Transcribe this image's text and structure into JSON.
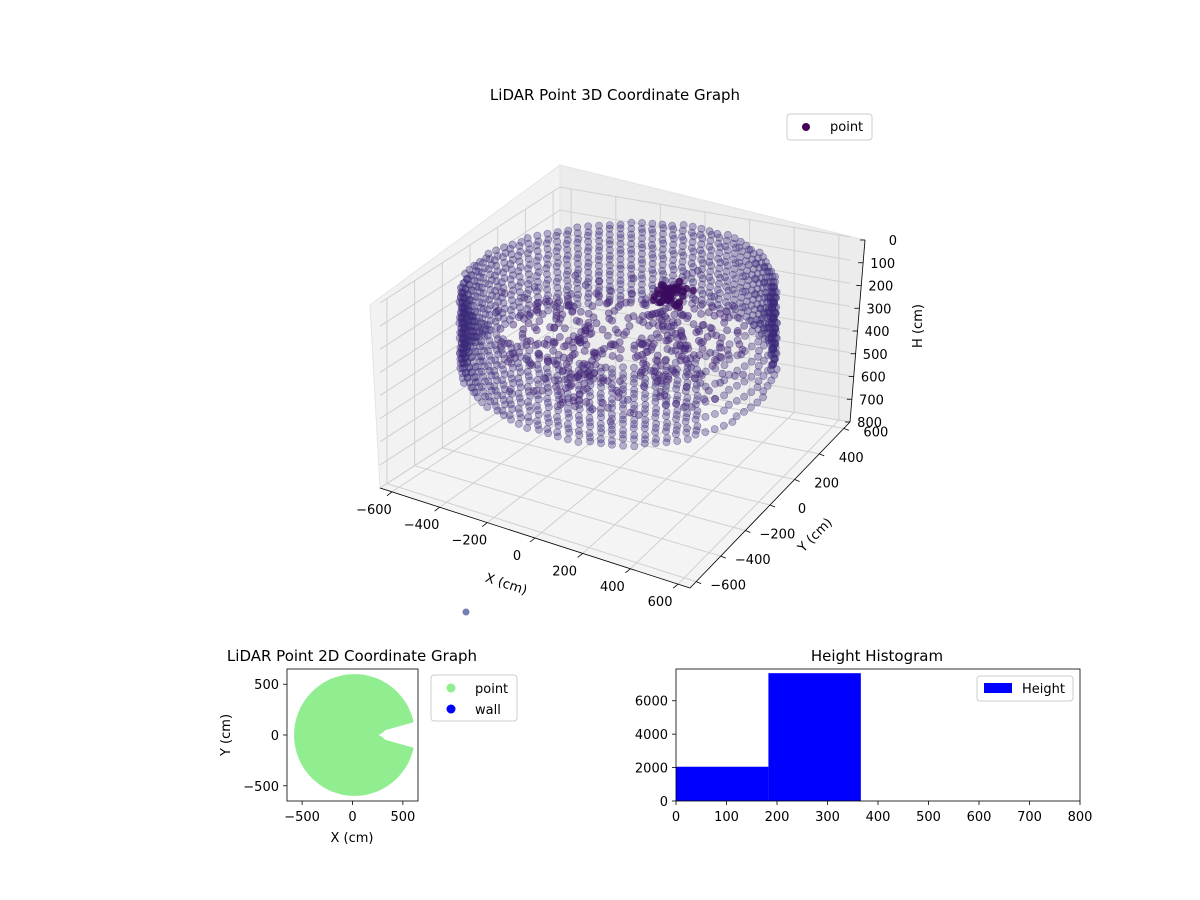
{
  "chart_data": [
    {
      "type": "scatter3d",
      "title": "LiDAR Point 3D Coordinate Graph",
      "xlabel": "X (cm)",
      "ylabel": "Y (cm)",
      "zlabel": "H (cm)",
      "xlim": [
        -650,
        650
      ],
      "ylim": [
        -650,
        650
      ],
      "zlim": [
        0,
        800
      ],
      "z_inverted": true,
      "xticks": [
        "−600",
        "−400",
        "−200",
        "0",
        "200",
        "400",
        "600"
      ],
      "yticks": [
        "−600",
        "−400",
        "−200",
        "0",
        "200",
        "400",
        "600"
      ],
      "zticks": [
        "0",
        "100",
        "200",
        "300",
        "400",
        "500",
        "600",
        "700",
        "800"
      ],
      "legend": [
        {
          "label": "point",
          "color": "#440154"
        }
      ],
      "legend_position": "upper right",
      "grid": true,
      "series": [
        {
          "name": "point",
          "color": "#3b2a7a",
          "description_values": {
            "radius_range": [
              560,
              620
            ],
            "height_range": [
              0,
              360
            ]
          }
        }
      ]
    },
    {
      "type": "scatter",
      "title": "LiDAR Point 2D Coordinate Graph",
      "xlabel": "X (cm)",
      "ylabel": "Y (cm)",
      "xlim": [
        -650,
        650
      ],
      "ylim": [
        -650,
        650
      ],
      "xticks": [
        "−500",
        "0",
        "500"
      ],
      "yticks": [
        "−500",
        "0",
        "500"
      ],
      "legend": [
        {
          "label": "point",
          "color": "#90ee90"
        },
        {
          "label": "wall",
          "color": "#0000ff"
        }
      ],
      "legend_position": "outside right"
    },
    {
      "type": "histogram",
      "title": "Height Histogram",
      "xlim": [
        0,
        800
      ],
      "ylim": [
        0,
        7900
      ],
      "xticks": [
        "0",
        "100",
        "200",
        "300",
        "400",
        "500",
        "600",
        "700",
        "800"
      ],
      "yticks": [
        "0",
        "2000",
        "4000",
        "6000"
      ],
      "bins": [
        {
          "start": 0,
          "end": 183,
          "count": 2050
        },
        {
          "start": 183,
          "end": 366,
          "count": 7650
        }
      ],
      "legend": [
        {
          "label": "Height",
          "color": "#0000ff"
        }
      ],
      "legend_position": "upper right"
    }
  ]
}
